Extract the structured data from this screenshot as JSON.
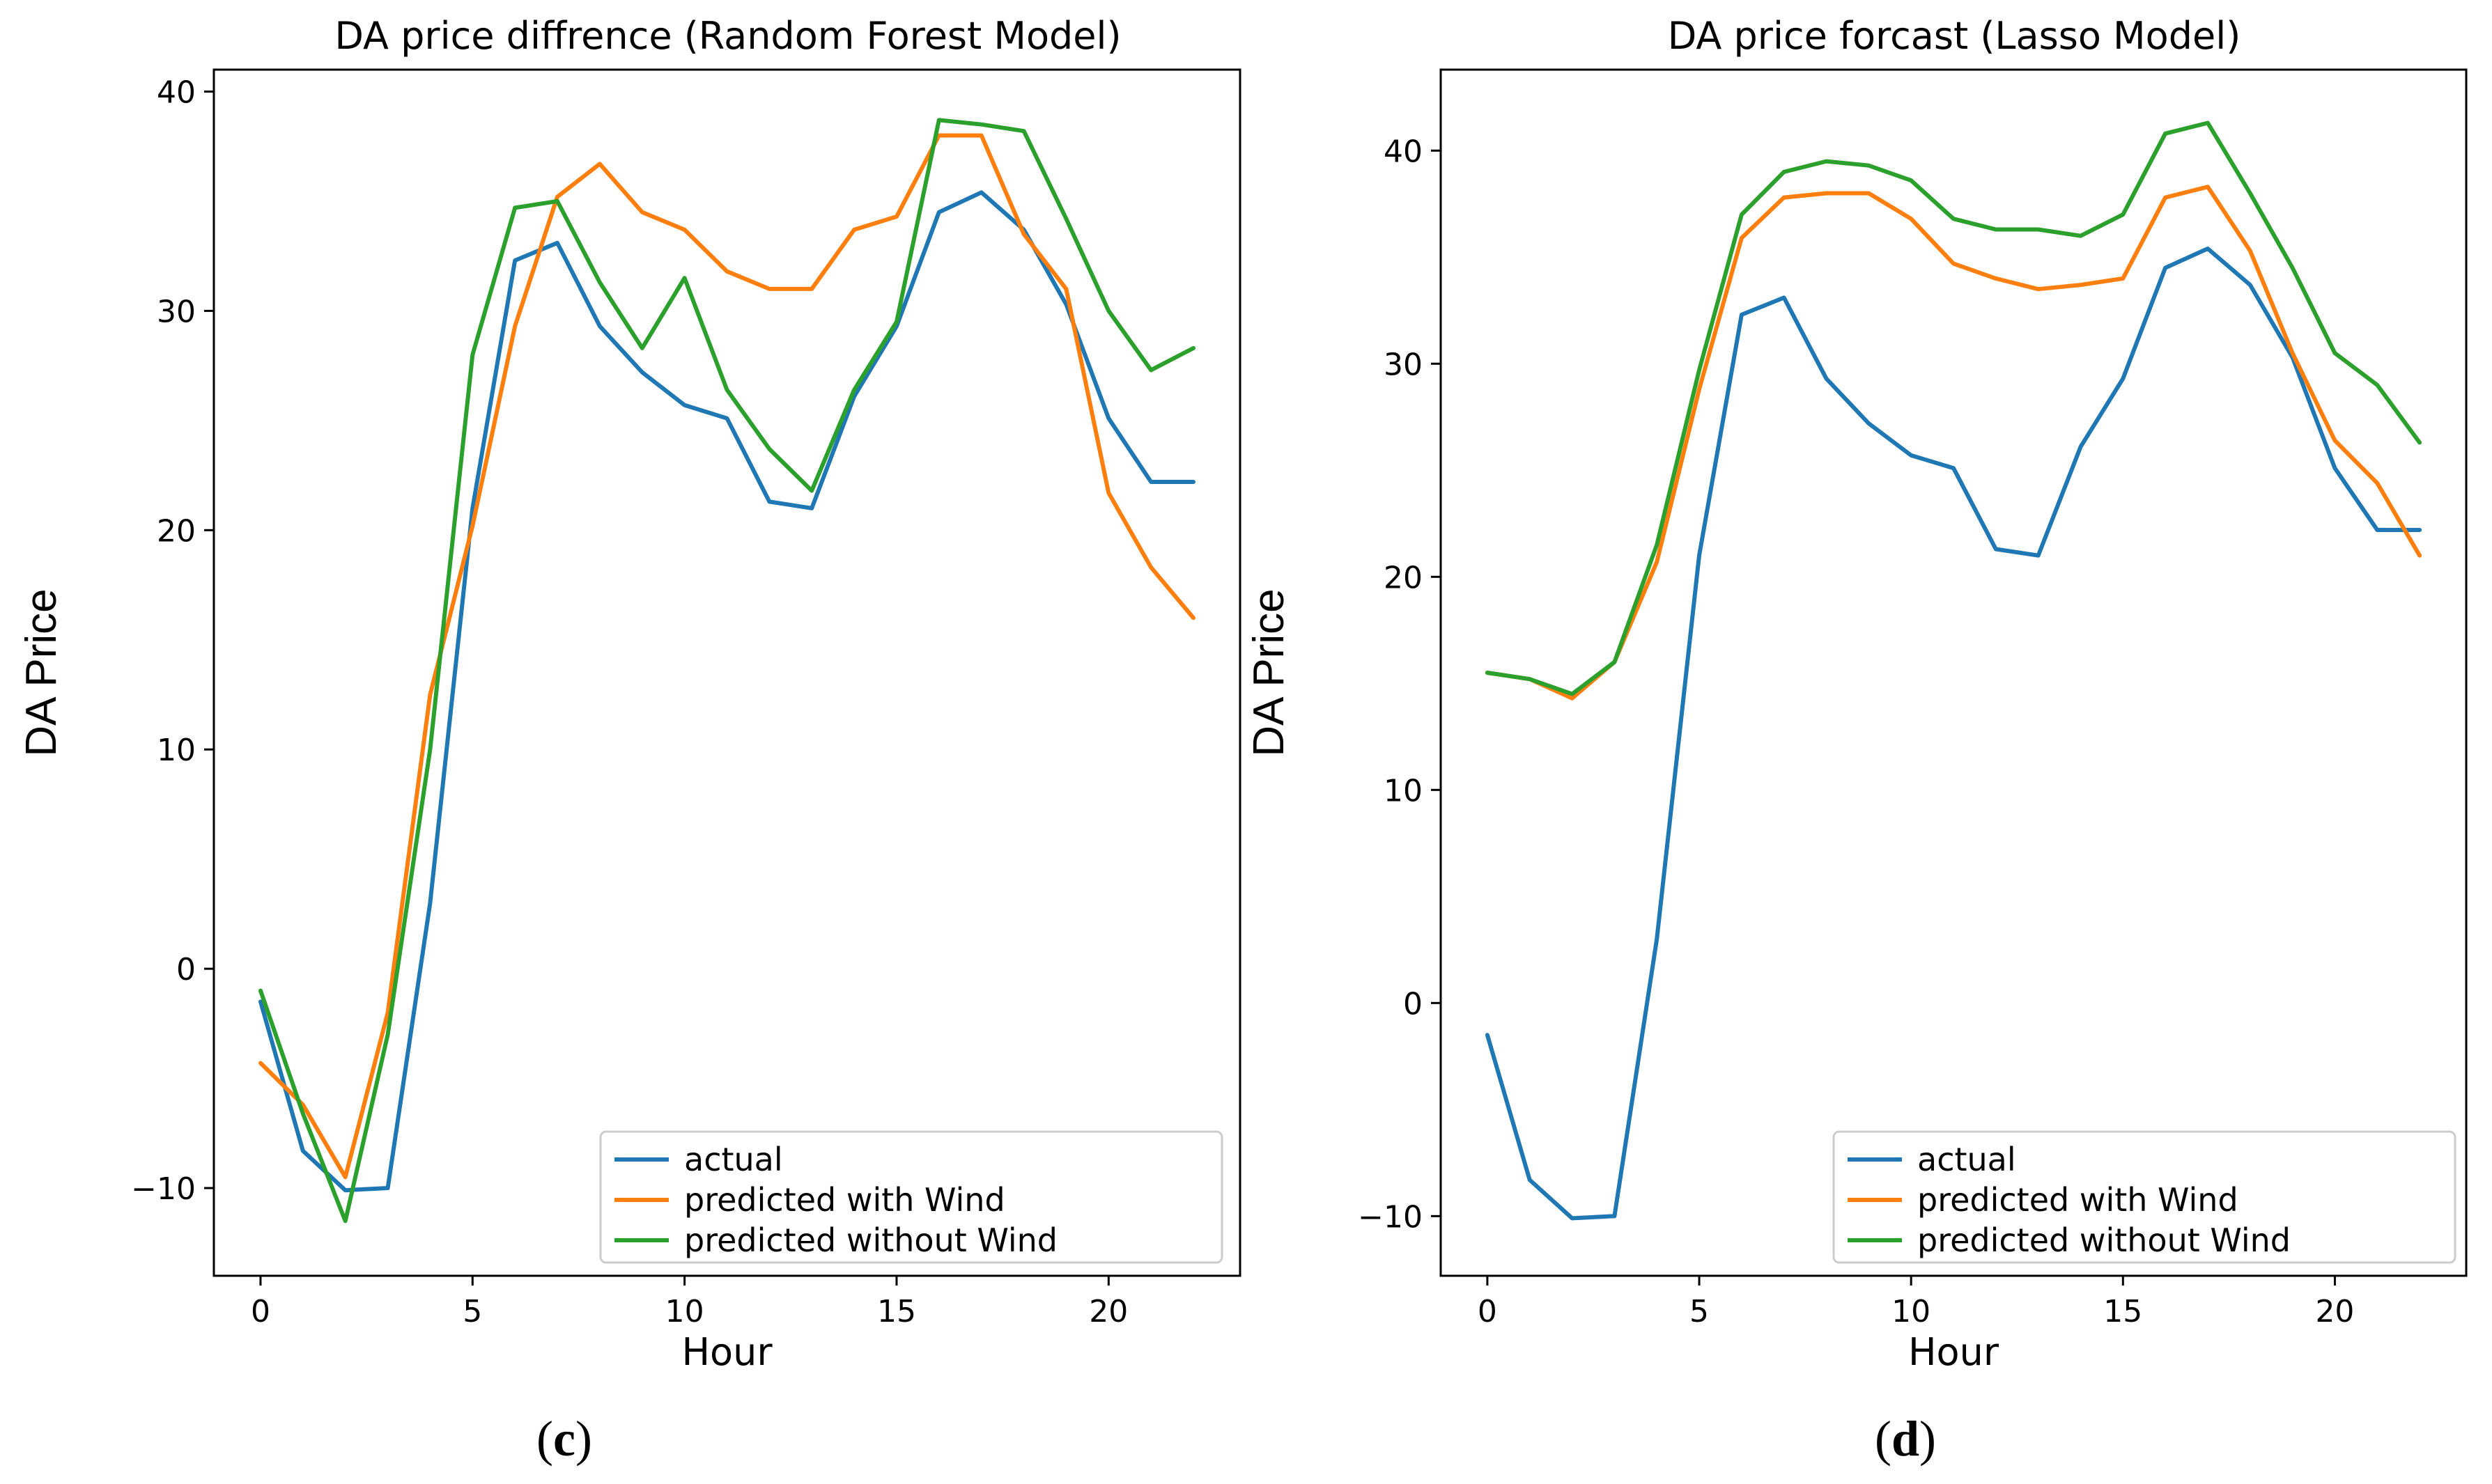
{
  "chart_data": [
    {
      "type": "line",
      "title": "DA price diffrence (Random Forest Model)",
      "xlabel": "Hour",
      "ylabel": "DA Price",
      "xlim": [
        -1.1,
        23.1
      ],
      "ylim": [
        -14,
        41
      ],
      "xticks": [
        0,
        5,
        10,
        15,
        20
      ],
      "yticks": [
        -10,
        0,
        10,
        20,
        30,
        40
      ],
      "legend_position": "lower-right",
      "caption": {
        "open": "(",
        "letter": "c",
        "close": ")"
      },
      "x": [
        0,
        1,
        2,
        3,
        4,
        5,
        6,
        7,
        8,
        9,
        10,
        11,
        12,
        13,
        14,
        15,
        16,
        17,
        18,
        19,
        20,
        21,
        22
      ],
      "series": [
        {
          "name": "actual",
          "color": "#1f77b4",
          "values": [
            -1.5,
            -8.3,
            -10.1,
            -10.0,
            3.0,
            21.0,
            32.3,
            33.1,
            29.3,
            27.2,
            25.7,
            25.1,
            21.3,
            21.0,
            26.1,
            29.3,
            34.5,
            35.4,
            33.7,
            30.3,
            25.1,
            22.2,
            22.2
          ]
        },
        {
          "name": "predicted with Wind",
          "color": "#ff7f0e",
          "values": [
            -4.3,
            -6.2,
            -9.5,
            -2.0,
            12.5,
            20.2,
            29.3,
            35.2,
            36.7,
            34.5,
            33.7,
            31.8,
            31.0,
            31.0,
            33.7,
            34.3,
            38.0,
            38.0,
            33.5,
            31.0,
            21.7,
            18.3,
            16.0
          ]
        },
        {
          "name": "predicted without Wind",
          "color": "#2ca02c",
          "values": [
            -1.0,
            -6.6,
            -11.5,
            -3.0,
            10.0,
            28.0,
            34.7,
            35.0,
            31.3,
            28.3,
            31.5,
            26.4,
            23.7,
            21.8,
            26.4,
            29.5,
            38.7,
            38.5,
            38.2,
            34.2,
            30.0,
            27.3,
            28.3
          ]
        }
      ]
    },
    {
      "type": "line",
      "title": "DA price forcast (Lasso Model)",
      "xlabel": "Hour",
      "ylabel": "DA Price",
      "xlim": [
        -1.1,
        23.1
      ],
      "ylim": [
        -12.8,
        43.8
      ],
      "xticks": [
        0,
        5,
        10,
        15,
        20
      ],
      "yticks": [
        -10,
        0,
        10,
        20,
        30,
        40
      ],
      "legend_position": "lower-right",
      "caption": {
        "open": "(",
        "letter": "d",
        "close": ")"
      },
      "x": [
        0,
        1,
        2,
        3,
        4,
        5,
        6,
        7,
        8,
        9,
        10,
        11,
        12,
        13,
        14,
        15,
        16,
        17,
        18,
        19,
        20,
        21,
        22
      ],
      "series": [
        {
          "name": "actual",
          "color": "#1f77b4",
          "values": [
            -1.5,
            -8.3,
            -10.1,
            -10.0,
            3.0,
            21.0,
            32.3,
            33.1,
            29.3,
            27.2,
            25.7,
            25.1,
            21.3,
            21.0,
            26.1,
            29.3,
            34.5,
            35.4,
            33.7,
            30.3,
            25.1,
            22.2,
            22.2
          ]
        },
        {
          "name": "predicted with Wind",
          "color": "#ff7f0e",
          "values": [
            15.5,
            15.2,
            14.3,
            16.0,
            20.7,
            28.8,
            35.9,
            37.8,
            38.0,
            38.0,
            36.8,
            34.7,
            34.0,
            33.5,
            33.7,
            34.0,
            37.8,
            38.3,
            35.3,
            30.5,
            26.4,
            24.4,
            21.0
          ]
        },
        {
          "name": "predicted without Wind",
          "color": "#2ca02c",
          "values": [
            15.5,
            15.2,
            14.5,
            16.0,
            21.5,
            29.7,
            37.0,
            39.0,
            39.5,
            39.3,
            38.6,
            36.8,
            36.3,
            36.3,
            36.0,
            37.0,
            40.8,
            41.3,
            38.0,
            34.5,
            30.5,
            29.0,
            26.3
          ]
        }
      ]
    }
  ]
}
